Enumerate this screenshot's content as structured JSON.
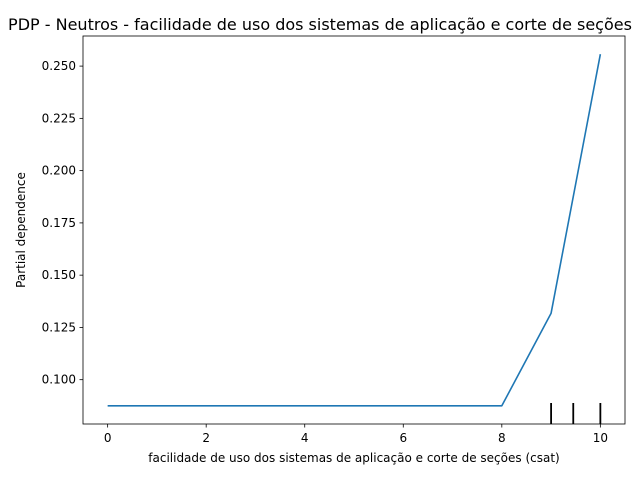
{
  "chart_data": {
    "type": "line",
    "title": "PDP - Neutros - facilidade de uso dos sistemas de aplicação e corte de seções",
    "xlabel": "facilidade de uso dos sistemas de aplicação e corte de seções (csat)",
    "ylabel": "Partial dependence",
    "xlim": [
      -0.5,
      10.5
    ],
    "ylim": [
      0.0788,
      0.2644
    ],
    "x_ticks": [
      0,
      2,
      4,
      6,
      8,
      10
    ],
    "y_ticks": [
      0.1,
      0.125,
      0.15,
      0.175,
      0.2,
      0.225,
      0.25
    ],
    "x_tick_labels": [
      "0",
      "2",
      "4",
      "6",
      "8",
      "10"
    ],
    "y_tick_labels": [
      "0.100",
      "0.125",
      "0.150",
      "0.175",
      "0.200",
      "0.225",
      "0.250"
    ],
    "series": [
      {
        "color": "#1f77b4",
        "x": [
          0,
          1,
          2,
          3,
          4,
          5,
          6,
          7,
          8,
          9,
          10
        ],
        "y": [
          0.0875,
          0.0875,
          0.0875,
          0.0875,
          0.0875,
          0.0875,
          0.0875,
          0.0875,
          0.0875,
          0.1318,
          0.2557
        ]
      }
    ],
    "rug_ticks": [
      9,
      9.45,
      10
    ],
    "grid": false
  }
}
